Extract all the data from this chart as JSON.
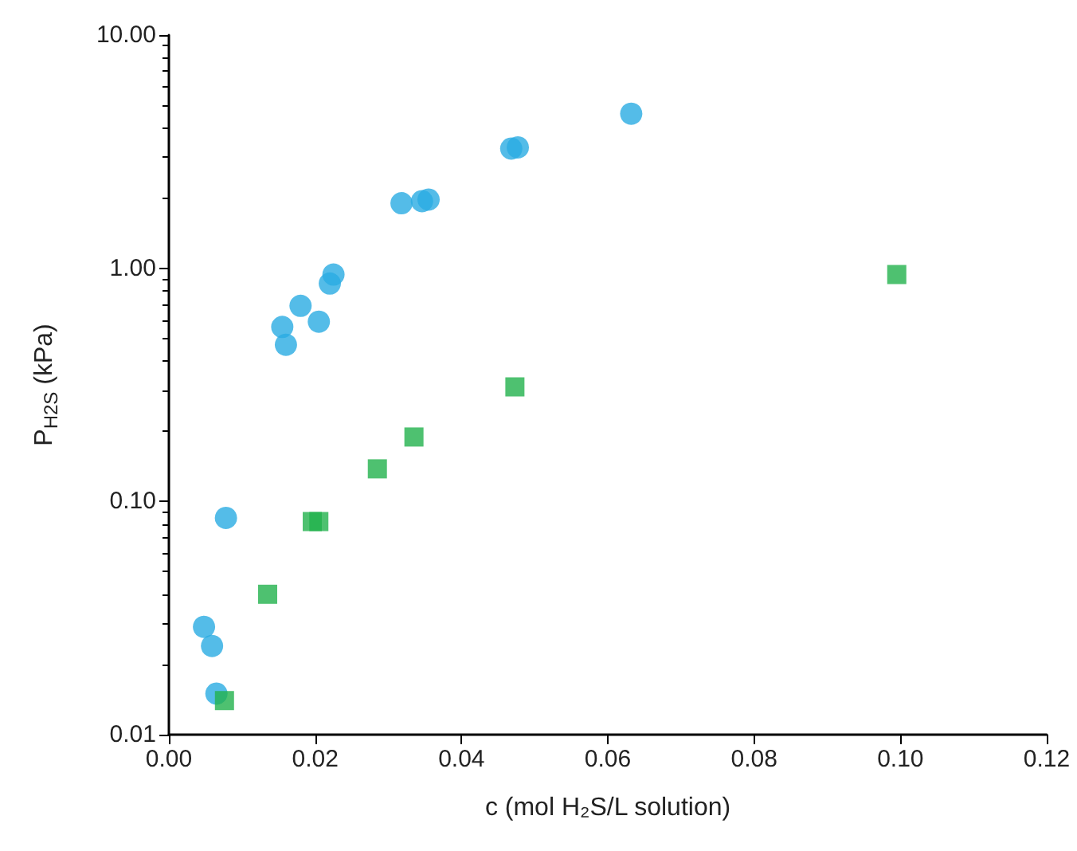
{
  "chart_data": {
    "type": "scatter",
    "xlabel": "c (mol H₂S/L solution)",
    "ylabel": "P$_{H2S}$ (kPa)",
    "log": "y",
    "grid": false,
    "xlim": [
      0,
      0.12
    ],
    "xticks": [
      {
        "value": 0,
        "label": "0.00"
      },
      {
        "value": 0.02,
        "label": "0.02"
      },
      {
        "value": 0.04,
        "label": "0.04"
      },
      {
        "value": 0.06,
        "label": "0.06"
      },
      {
        "value": 0.08,
        "label": "0.08"
      },
      {
        "value": 0.1,
        "label": "0.10"
      },
      {
        "value": 0.12,
        "label": "0.12"
      }
    ],
    "ylim": [
      0.01,
      10
    ],
    "yticks": [
      {
        "value": 0.01,
        "label": "0.01"
      },
      {
        "value": 0.1,
        "label": "0.10"
      },
      {
        "value": 1,
        "label": "1.00"
      },
      {
        "value": 10,
        "label": "10.00"
      }
    ],
    "series": [
      {
        "color": "#29abe2",
        "marker": "circle",
        "x": [
          0.0048,
          0.0059,
          0.0065,
          0.0078,
          0.0155,
          0.016,
          0.018,
          0.0205,
          0.022,
          0.0225,
          0.0318,
          0.0346,
          0.0355,
          0.0468,
          0.0477,
          0.0632
        ],
        "values": [
          0.029,
          0.024,
          0.015,
          0.085,
          0.56,
          0.47,
          0.69,
          0.59,
          0.86,
          0.94,
          1.9,
          1.94,
          1.97,
          3.26,
          3.3,
          4.6
        ]
      },
      {
        "color": "#22b14c",
        "marker": "square",
        "x": [
          0.0076,
          0.0135,
          0.0196,
          0.0205,
          0.0285,
          0.0335,
          0.0473,
          0.0995
        ],
        "values": [
          0.014,
          0.04,
          0.082,
          0.082,
          0.138,
          0.189,
          0.31,
          0.94
        ]
      }
    ]
  }
}
